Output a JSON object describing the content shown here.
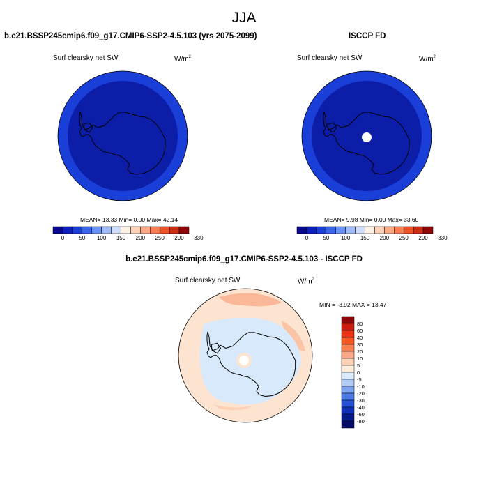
{
  "figure": {
    "title": "JJA",
    "variable_label": "Surf clearsky net SW",
    "units_base": "W/m",
    "units_exp": "2"
  },
  "panels": {
    "model": {
      "title": "b.e21.BSSP245cmip6.f09_g17.CMIP6-SSP2-4.5.103 (yrs 2075-2099)",
      "stats": "MEAN= 13.33  Min=   0.00  Max=  42.14"
    },
    "obs": {
      "title": "ISCCP FD",
      "stats": "MEAN=  9.98  Min=   0.00  Max=  33.60"
    },
    "diff": {
      "title": "b.e21.BSSP245cmip6.f09_g17.CMIP6-SSP2-4.5.103 - ISCCP FD",
      "stats": "MIN =  -3.92 MAX =  13.47"
    }
  },
  "chart_data": [
    {
      "type": "heatmap",
      "projection": "south polar stereographic",
      "title": "b.e21.BSSP245cmip6.f09_g17.CMIP6-SSP2-4.5.103 (yrs 2075-2099)",
      "variable": "Surf clearsky net SW",
      "units": "W/m2",
      "mean": 13.33,
      "min": 0.0,
      "max": 42.14,
      "colorbar": {
        "orientation": "horizontal",
        "levels": [
          0,
          50,
          100,
          150,
          200,
          250,
          290,
          330
        ],
        "colors": [
          "#08088c",
          "#0a1fbb",
          "#1c3ed8",
          "#3a64ea",
          "#6a92f2",
          "#9fbaf6",
          "#cfdcfa",
          "#fff1e4",
          "#fdd2b8",
          "#fbaa86",
          "#f77e55",
          "#ec5128",
          "#cc2c12",
          "#8c0808"
        ]
      }
    },
    {
      "type": "heatmap",
      "projection": "south polar stereographic",
      "title": "ISCCP FD",
      "variable": "Surf clearsky net SW",
      "units": "W/m2",
      "mean": 9.98,
      "min": 0.0,
      "max": 33.6,
      "colorbar": {
        "orientation": "horizontal",
        "levels": [
          0,
          50,
          100,
          150,
          200,
          250,
          290,
          330
        ],
        "colors": [
          "#08088c",
          "#0a1fbb",
          "#1c3ed8",
          "#3a64ea",
          "#6a92f2",
          "#9fbaf6",
          "#cfdcfa",
          "#fff1e4",
          "#fdd2b8",
          "#fbaa86",
          "#f77e55",
          "#ec5128",
          "#cc2c12",
          "#8c0808"
        ]
      }
    },
    {
      "type": "heatmap",
      "projection": "south polar stereographic",
      "title": "b.e21.BSSP245cmip6.f09_g17.CMIP6-SSP2-4.5.103 - ISCCP FD",
      "variable": "Surf clearsky net SW",
      "units": "W/m2",
      "min": -3.92,
      "max": 13.47,
      "colorbar": {
        "orientation": "vertical",
        "levels": [
          80,
          60,
          40,
          30,
          20,
          10,
          5,
          0,
          -5,
          -10,
          -20,
          -30,
          -40,
          -60,
          -80
        ],
        "colors": [
          "#8c0808",
          "#cc1a0c",
          "#ea3414",
          "#f4581e",
          "#f8804e",
          "#fba888",
          "#fcd0b4",
          "#fdecdc",
          "#dbeafb",
          "#b0cbf5",
          "#7ea4ef",
          "#4d79e6",
          "#2450d6",
          "#0f2fb8",
          "#061a8a",
          "#050a66"
        ]
      }
    }
  ]
}
